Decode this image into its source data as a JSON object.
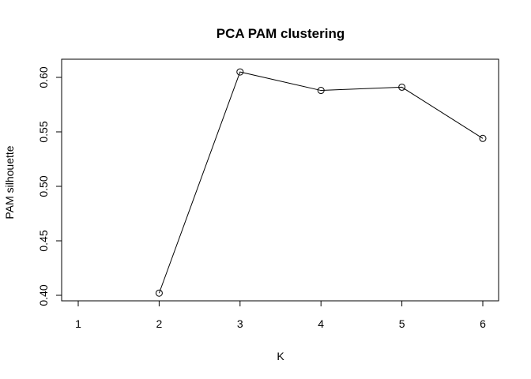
{
  "chart_data": {
    "type": "line",
    "title": "PCA PAM clustering",
    "xlabel": "K",
    "ylabel": "PAM silhouette",
    "x": [
      2,
      3,
      4,
      5,
      6
    ],
    "y": [
      0.402,
      0.605,
      0.588,
      0.591,
      0.544
    ],
    "xlim": [
      1,
      6
    ],
    "ylim": [
      0.4,
      0.61
    ],
    "xticks": [
      1,
      2,
      3,
      4,
      5,
      6
    ],
    "xtick_labels": [
      "1",
      "2",
      "3",
      "4",
      "5",
      "6"
    ],
    "yticks": [
      0.4,
      0.45,
      0.5,
      0.55,
      0.6
    ],
    "ytick_labels": [
      "0.40",
      "0.45",
      "0.50",
      "0.55",
      "0.60"
    ],
    "grid": false,
    "markers": "open-circle",
    "line_color": "#000000"
  }
}
